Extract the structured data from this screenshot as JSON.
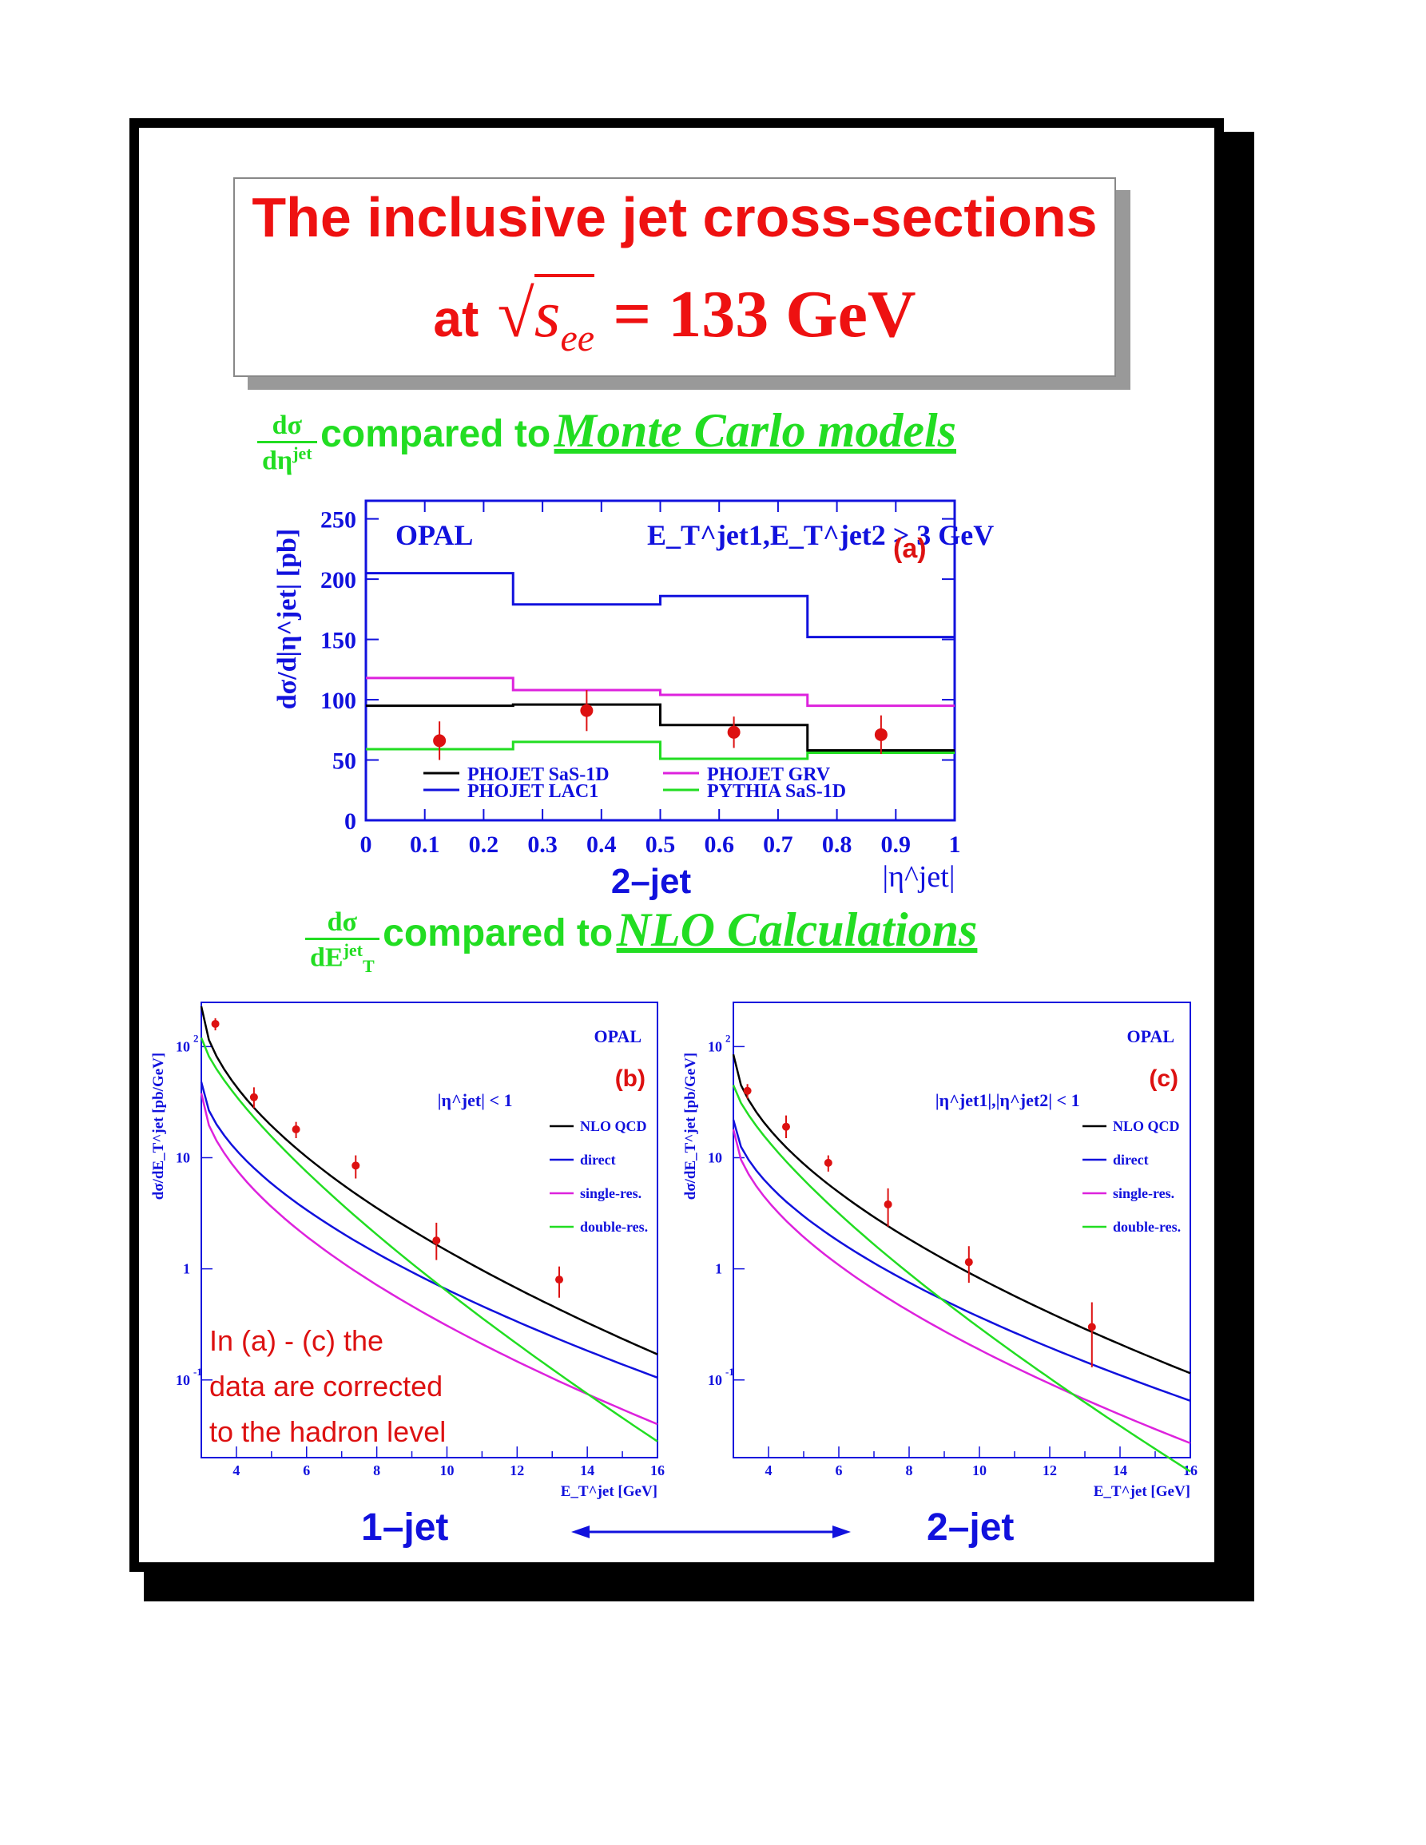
{
  "title": {
    "line1": "The inclusive jet cross-sections",
    "at": "at",
    "energy": "= 133 GeV",
    "sqrt_var": "s",
    "sqrt_sub": "ee"
  },
  "subheading1": {
    "frac_num": "dσ",
    "frac_den": "dη",
    "frac_den_sup": "jet",
    "text": "compared to",
    "emph": "Monte Carlo models"
  },
  "subheading2": {
    "frac_num": "dσ",
    "frac_den": "dE",
    "frac_den_sup": "jet",
    "frac_den_sub": "T",
    "text": "compared to",
    "emph": "NLO Calculations"
  },
  "footnote": {
    "line1": "In (a) - (c) the",
    "line2": "data are corrected",
    "line3": "to the hadron level"
  },
  "bottom_labels": {
    "left": "1–jet",
    "right": "2–jet"
  },
  "colors": {
    "title_red": "#ee1111",
    "accent_green": "#22dd22",
    "axis_blue": "#1111dd",
    "data_red": "#dd1111"
  },
  "chart_data": [
    {
      "type": "line",
      "id": "a",
      "panel_label": "(a)",
      "experiment": "OPAL",
      "cut_label": "E_T^jet1,E_T^jet2 > 3 GeV",
      "title": "2–jet",
      "xlabel": "|η^jet|",
      "ylabel": "dσ/d|η^jet| [pb]",
      "xlim": [
        0,
        1
      ],
      "ylim": [
        0,
        265
      ],
      "xticks": [
        0,
        0.1,
        0.2,
        0.3,
        0.4,
        0.5,
        0.6,
        0.7,
        0.8,
        0.9,
        1
      ],
      "yticks": [
        0,
        50,
        100,
        150,
        200,
        250
      ],
      "bin_edges": [
        0,
        0.25,
        0.5,
        0.75,
        1.0
      ],
      "series": [
        {
          "name": "PHOJET SaS-1D",
          "color": "#000000",
          "values": [
            95,
            96,
            79,
            58
          ]
        },
        {
          "name": "PHOJET LAC1",
          "color": "#1111dd",
          "values": [
            205,
            179,
            186,
            152
          ]
        },
        {
          "name": "PHOJET GRV",
          "color": "#dd22dd",
          "values": [
            118,
            108,
            104,
            95
          ]
        },
        {
          "name": "PYTHIA SaS-1D",
          "color": "#22dd22",
          "values": [
            59,
            65,
            51,
            56
          ]
        }
      ],
      "data_points": [
        {
          "x": 0.125,
          "y": 66,
          "err": 16
        },
        {
          "x": 0.375,
          "y": 91,
          "err": 17
        },
        {
          "x": 0.625,
          "y": 73,
          "err": 13
        },
        {
          "x": 0.875,
          "y": 71,
          "err": 16
        }
      ],
      "legend": "bottom"
    },
    {
      "type": "line",
      "id": "b",
      "panel_label": "(b)",
      "experiment": "OPAL",
      "cut_label": "|η^jet| < 1",
      "xlabel": "E_T^jet [GeV]",
      "ylabel": "dσ/dE_T^jet [pb/GeV]",
      "xlim": [
        3,
        16
      ],
      "ylim": [
        0.02,
        250
      ],
      "log_y": true,
      "xticks": [
        4,
        6,
        8,
        10,
        12,
        14,
        16
      ],
      "series": [
        {
          "name": "NLO QCD",
          "color": "#000000",
          "y_at_3": 230,
          "y_at_16": 0.17
        },
        {
          "name": "direct",
          "color": "#1111dd",
          "y_at_3": 48,
          "y_at_16": 0.105
        },
        {
          "name": "single-res.",
          "color": "#dd22dd",
          "y_at_3": 38,
          "y_at_16": 0.04
        },
        {
          "name": "double-res.",
          "color": "#22dd22",
          "y_at_3": 120,
          "y_at_16": 0.028
        }
      ],
      "data_points": [
        {
          "x": 3.4,
          "y": 160,
          "lo": 140,
          "hi": 180
        },
        {
          "x": 4.5,
          "y": 35,
          "lo": 28,
          "hi": 43
        },
        {
          "x": 5.7,
          "y": 18,
          "lo": 15,
          "hi": 21
        },
        {
          "x": 7.4,
          "y": 8.5,
          "lo": 6.5,
          "hi": 10.5
        },
        {
          "x": 9.7,
          "y": 1.8,
          "lo": 1.2,
          "hi": 2.6
        },
        {
          "x": 13.2,
          "y": 0.8,
          "lo": 0.55,
          "hi": 1.05
        }
      ]
    },
    {
      "type": "line",
      "id": "c",
      "panel_label": "(c)",
      "experiment": "OPAL",
      "cut_label": "|η^jet1|,|η^jet2| < 1",
      "xlabel": "E_T^jet [GeV]",
      "ylabel": "dσ/dE_T^jet [pb/GeV]",
      "xlim": [
        3,
        16
      ],
      "ylim": [
        0.02,
        250
      ],
      "log_y": true,
      "xticks": [
        4,
        6,
        8,
        10,
        12,
        14,
        16
      ],
      "series": [
        {
          "name": "NLO QCD",
          "color": "#000000",
          "y_at_3": 85,
          "y_at_16": 0.115
        },
        {
          "name": "direct",
          "color": "#1111dd",
          "y_at_3": 22,
          "y_at_16": 0.065
        },
        {
          "name": "single-res.",
          "color": "#dd22dd",
          "y_at_3": 18,
          "y_at_16": 0.027
        },
        {
          "name": "double-res.",
          "color": "#22dd22",
          "y_at_3": 45,
          "y_at_16": 0.015
        }
      ],
      "data_points": [
        {
          "x": 3.4,
          "y": 40,
          "lo": 34,
          "hi": 46
        },
        {
          "x": 4.5,
          "y": 19,
          "lo": 15,
          "hi": 24
        },
        {
          "x": 5.7,
          "y": 9,
          "lo": 7.5,
          "hi": 10.5
        },
        {
          "x": 7.4,
          "y": 3.8,
          "lo": 2.4,
          "hi": 5.3
        },
        {
          "x": 9.7,
          "y": 1.15,
          "lo": 0.75,
          "hi": 1.6
        },
        {
          "x": 13.2,
          "y": 0.3,
          "lo": 0.13,
          "hi": 0.5
        }
      ]
    }
  ]
}
